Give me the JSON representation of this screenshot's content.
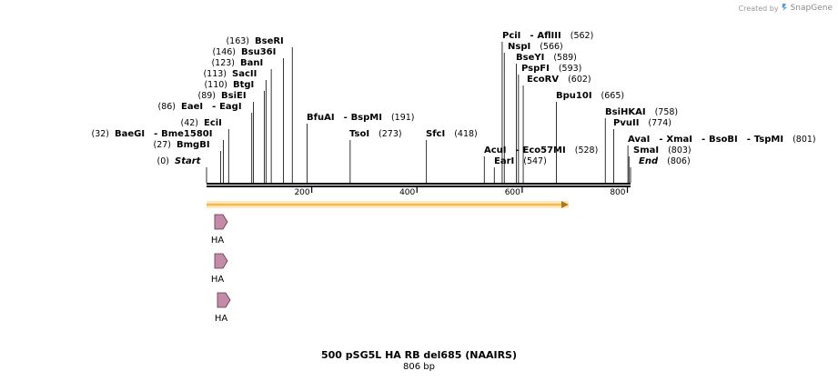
{
  "credit": {
    "prefix": "Created by",
    "brand": "SnapGene"
  },
  "title": "500 pSG5L HA RB del685 (NAAIRS)",
  "subtitle": "806 bp",
  "sequence": {
    "length": 806,
    "axis_ticks": [
      200,
      400,
      600,
      800
    ]
  },
  "colors": {
    "orf": "#f5b951",
    "feature": "#c48aa8",
    "line": "#000000"
  },
  "sites": [
    {
      "names": [
        "BseRI"
      ],
      "pos": 163
    },
    {
      "names": [
        "Bsu36I"
      ],
      "pos": 146
    },
    {
      "names": [
        "BanI"
      ],
      "pos": 123
    },
    {
      "names": [
        "SacII"
      ],
      "pos": 113
    },
    {
      "names": [
        "BtgI"
      ],
      "pos": 110
    },
    {
      "names": [
        "BsiEI"
      ],
      "pos": 89
    },
    {
      "names": [
        "EaeI",
        "EagI"
      ],
      "pos": 86
    },
    {
      "names": [
        "EciI"
      ],
      "pos": 42
    },
    {
      "names": [
        "BaeGI",
        "Bme1580I"
      ],
      "pos": 32
    },
    {
      "names": [
        "BmgBI"
      ],
      "pos": 27
    },
    {
      "names": [
        "Start"
      ],
      "pos": 0
    },
    {
      "names": [
        "BfuAI",
        "BspMI"
      ],
      "pos": 191
    },
    {
      "names": [
        "TsoI"
      ],
      "pos": 273
    },
    {
      "names": [
        "SfcI"
      ],
      "pos": 418
    },
    {
      "names": [
        "PciI",
        "AflIII"
      ],
      "pos": 562
    },
    {
      "names": [
        "NspI"
      ],
      "pos": 566
    },
    {
      "names": [
        "BseYI"
      ],
      "pos": 589
    },
    {
      "names": [
        "PspFI"
      ],
      "pos": 593
    },
    {
      "names": [
        "EcoRV"
      ],
      "pos": 602
    },
    {
      "names": [
        "AcuI",
        "Eco57MI"
      ],
      "pos": 528
    },
    {
      "names": [
        "EarI"
      ],
      "pos": 547
    },
    {
      "names": [
        "Bpu10I"
      ],
      "pos": 665
    },
    {
      "names": [
        "BsiHKAI"
      ],
      "pos": 758
    },
    {
      "names": [
        "PvuII"
      ],
      "pos": 774
    },
    {
      "names": [
        "AvaI",
        "XmaI",
        "BsoBI",
        "TspMI"
      ],
      "pos": 801
    },
    {
      "names": [
        "SmaI"
      ],
      "pos": 803
    },
    {
      "names": [
        "End"
      ],
      "pos": 806
    }
  ],
  "features": [
    {
      "name": "HA"
    },
    {
      "name": "HA"
    },
    {
      "name": "HA"
    }
  ]
}
